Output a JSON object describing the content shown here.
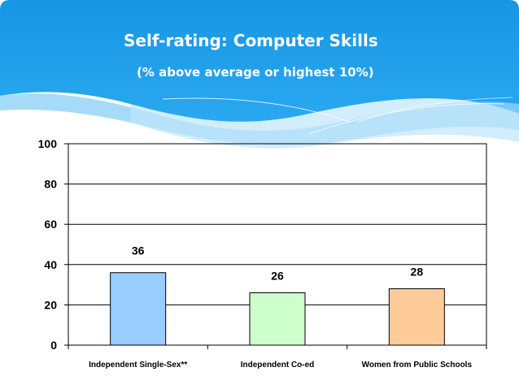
{
  "slide": {
    "title": "Self-rating: Computer Skills",
    "subtitle": "(% above average or highest 10%)",
    "header_color": "#1e9ae6"
  },
  "chart_data": {
    "type": "bar",
    "title": "Self-rating: Computer Skills",
    "subtitle": "(% above average or highest 10%)",
    "categories": [
      "Independent Single-Sex**",
      "Independent Co-ed",
      "Women from Public Schools"
    ],
    "values": [
      36,
      26,
      28
    ],
    "colors": [
      "#99ccff",
      "#ccffcc",
      "#ffcc99"
    ],
    "ylim": [
      0,
      100
    ],
    "yticks": [
      0,
      20,
      40,
      60,
      80,
      100
    ],
    "xlabel": "",
    "ylabel": "",
    "grid": true,
    "legend": "none",
    "data_labels": true
  }
}
